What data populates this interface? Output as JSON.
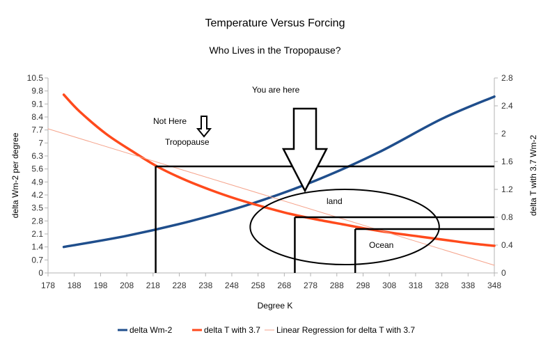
{
  "chart_data": {
    "type": "line",
    "title": "Temperature Versus Forcing",
    "subtitle": "Who Lives in the Tropopause?",
    "xlabel": "Degree K",
    "ylabel_left": "delta Wm-2 per degree",
    "ylabel_right": "delta T with 3.7 Wm-2",
    "xlim": [
      178,
      348
    ],
    "ylim_left": [
      0,
      10.5
    ],
    "ylim_right": [
      0,
      2.8
    ],
    "x_ticks": [
      "178",
      "188",
      "198",
      "208",
      "218",
      "228",
      "238",
      "248",
      "258",
      "268",
      "278",
      "288",
      "298",
      "308",
      "318",
      "328",
      "338",
      "348"
    ],
    "y_left_ticks": [
      "0",
      "0.7",
      "1.4",
      "2.1",
      "2.8",
      "3.5",
      "4.2",
      "4.9",
      "5.6",
      "6.3",
      "7",
      "7.7",
      "8.4",
      "9.1",
      "9.8",
      "10.5"
    ],
    "y_right_ticks": [
      "0",
      "0.4",
      "0.8",
      "1.2",
      "1.6",
      "2",
      "2.4",
      "2.8"
    ],
    "grid": false,
    "legend_position": "bottom",
    "series": [
      {
        "name": "delta Wm-2",
        "axis": "left",
        "color": "#1f4e8c",
        "x": [
          184,
          208,
          232,
          256,
          280,
          304,
          328,
          348
        ],
        "y": [
          1.4,
          2.0,
          2.78,
          3.75,
          4.98,
          6.5,
          8.3,
          9.5
        ]
      },
      {
        "name": "delta T with 3.7",
        "axis": "right",
        "color": "#ff4a1c",
        "x": [
          184,
          190,
          200,
          210,
          220,
          230,
          240,
          250,
          260,
          270,
          280,
          290,
          300,
          310,
          320,
          330,
          340,
          348
        ],
        "y": [
          2.56,
          2.32,
          2.0,
          1.75,
          1.52,
          1.34,
          1.19,
          1.06,
          0.95,
          0.85,
          0.77,
          0.7,
          0.63,
          0.57,
          0.52,
          0.47,
          0.42,
          0.39
        ]
      },
      {
        "name": "Linear Regression for delta T with 3.7",
        "axis": "right",
        "color": "#f5a38b",
        "x": [
          178,
          348
        ],
        "y": [
          2.07,
          0.11
        ]
      }
    ],
    "annotations": [
      {
        "text": "You are here"
      },
      {
        "text": "Not Here"
      },
      {
        "text": "Tropopause"
      },
      {
        "text": "land"
      },
      {
        "text": "Ocean"
      }
    ],
    "reference_lines": [
      {
        "x": 219,
        "y_right": 1.53
      },
      {
        "x": 272,
        "y_right": 0.8
      },
      {
        "x": 295,
        "y_right": 0.63
      }
    ],
    "ellipse": {
      "cx": 291,
      "cy_right": 0.66,
      "rx": 36,
      "ry_right": 0.54
    }
  }
}
